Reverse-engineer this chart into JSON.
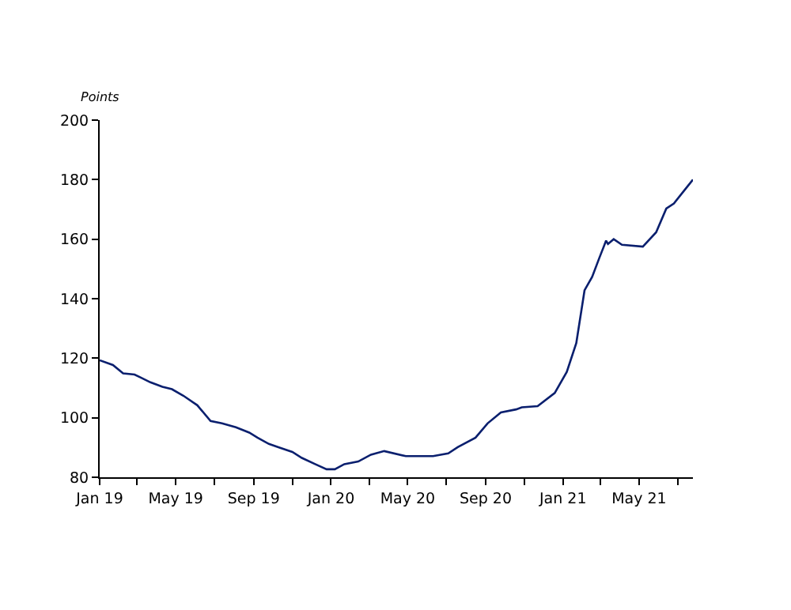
{
  "chart_data": {
    "type": "line",
    "ylabel": "Points",
    "x": [
      "2019-01-01",
      "2019-01-22",
      "2019-02-07",
      "2019-02-25",
      "2019-03-07",
      "2019-03-22",
      "2019-04-10",
      "2019-04-25",
      "2019-05-13",
      "2019-06-04",
      "2019-06-25",
      "2019-07-13",
      "2019-08-04",
      "2019-08-25",
      "2019-09-07",
      "2019-09-25",
      "2019-10-10",
      "2019-11-01",
      "2019-11-16",
      "2019-12-07",
      "2019-12-25",
      "2020-01-07",
      "2020-01-22",
      "2020-02-13",
      "2020-03-04",
      "2020-03-25",
      "2020-04-28",
      "2020-06-10",
      "2020-07-04",
      "2020-07-19",
      "2020-08-16",
      "2020-09-04",
      "2020-09-25",
      "2020-10-19",
      "2020-10-28",
      "2020-11-22",
      "2020-12-19",
      "2021-01-07",
      "2021-01-22",
      "2021-02-04",
      "2021-02-16",
      "2021-02-27",
      "2021-03-10",
      "2021-03-13",
      "2021-03-22",
      "2021-04-04",
      "2021-05-07",
      "2021-05-28",
      "2021-06-13",
      "2021-06-25",
      "2021-07-13",
      "2021-07-25"
    ],
    "series": [
      {
        "color": "#0a1f6e",
        "values": [
          119.3,
          117.7,
          114.9,
          114.5,
          113.5,
          111.9,
          110.4,
          109.6,
          107.4,
          104.2,
          98.9,
          98.1,
          96.8,
          95.0,
          93.3,
          91.2,
          90.1,
          88.5,
          86.5,
          84.4,
          82.7,
          82.7,
          84.4,
          85.3,
          87.6,
          88.8,
          87.1,
          87.1,
          88.0,
          90.1,
          93.3,
          98.1,
          101.8,
          102.8,
          103.5,
          103.9,
          108.3,
          115.4,
          125.1,
          142.8,
          147.3,
          153.5,
          159.5,
          158.4,
          160.0,
          158.1,
          157.5,
          162.3,
          170.3,
          172.0,
          176.8,
          180.0
        ]
      }
    ],
    "xlim": [
      "2019-01-01",
      "2021-07-25"
    ],
    "xticks": [
      {
        "value": "2019-01-01",
        "label": "Jan 19"
      },
      {
        "value": "2019-03-01",
        "label": null
      },
      {
        "value": "2019-05-01",
        "label": "May 19"
      },
      {
        "value": "2019-07-01",
        "label": null
      },
      {
        "value": "2019-09-01",
        "label": "Sep 19"
      },
      {
        "value": "2019-11-01",
        "label": null
      },
      {
        "value": "2020-01-01",
        "label": "Jan 20"
      },
      {
        "value": "2020-03-01",
        "label": null
      },
      {
        "value": "2020-05-01",
        "label": "May 20"
      },
      {
        "value": "2020-07-01",
        "label": null
      },
      {
        "value": "2020-09-01",
        "label": "Sep 20"
      },
      {
        "value": "2020-11-01",
        "label": null
      },
      {
        "value": "2021-01-01",
        "label": "Jan 21"
      },
      {
        "value": "2021-03-01",
        "label": null
      },
      {
        "value": "2021-05-01",
        "label": "May 21"
      },
      {
        "value": "2021-07-01",
        "label": null
      }
    ],
    "ylim": [
      80,
      200
    ],
    "yticks": [
      80,
      100,
      120,
      140,
      160,
      180,
      200
    ],
    "marker": "none",
    "line_style": "solid"
  }
}
